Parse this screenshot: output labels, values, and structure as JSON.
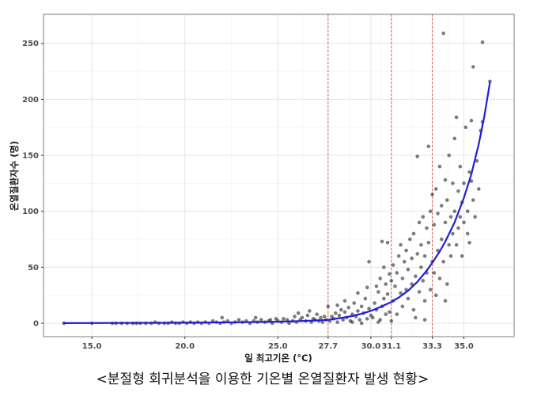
{
  "chart_data": {
    "type": "scatter",
    "xlabel": "일 최고기온 (°C)",
    "ylabel": "온열질환자수 (명)",
    "xlim": [
      12.4,
      37.7
    ],
    "ylim": [
      -12,
      276
    ],
    "x_ticks": [
      15.0,
      20.0,
      25.0,
      27.7,
      30.0,
      31.1,
      33.3,
      35.0
    ],
    "x_tick_labels": [
      "15.0",
      "20.0",
      "25.0",
      "27.7",
      "30.0",
      "31.1",
      "33.3",
      "35.0"
    ],
    "y_ticks": [
      0,
      50,
      100,
      150,
      200,
      250
    ],
    "y_tick_labels": [
      "0",
      "50",
      "100",
      "150",
      "200",
      "250"
    ],
    "grid": true,
    "breakpoints": [
      27.7,
      31.1,
      33.3
    ],
    "colors": {
      "point": "#111111",
      "fit": "#1f1fd8",
      "breakpoint": "#e05a5a",
      "grid_major": "#e4e4e4",
      "grid_minor": "#f1f1f1",
      "panel_border": "#7f7f7f"
    },
    "series": [
      {
        "type": "scatter",
        "points": [
          [
            13.5,
            0
          ],
          [
            15.0,
            0
          ],
          [
            16.1,
            0
          ],
          [
            16.3,
            0
          ],
          [
            16.6,
            0
          ],
          [
            16.9,
            0
          ],
          [
            17.2,
            0
          ],
          [
            17.4,
            0
          ],
          [
            17.6,
            0
          ],
          [
            17.9,
            0
          ],
          [
            18.2,
            0
          ],
          [
            18.4,
            1
          ],
          [
            18.6,
            0
          ],
          [
            18.9,
            0
          ],
          [
            19.1,
            0
          ],
          [
            19.3,
            1
          ],
          [
            19.5,
            0
          ],
          [
            19.7,
            0
          ],
          [
            19.9,
            1
          ],
          [
            20.1,
            0
          ],
          [
            20.3,
            1
          ],
          [
            20.5,
            0
          ],
          [
            20.7,
            1
          ],
          [
            20.9,
            0
          ],
          [
            21.1,
            1
          ],
          [
            21.3,
            0
          ],
          [
            21.5,
            2
          ],
          [
            21.7,
            1
          ],
          [
            21.9,
            0
          ],
          [
            22.1,
            1
          ],
          [
            22.3,
            2
          ],
          [
            22.5,
            0
          ],
          [
            22.7,
            1
          ],
          [
            22.9,
            3
          ],
          [
            23.1,
            1
          ],
          [
            23.3,
            2
          ],
          [
            23.5,
            0
          ],
          [
            23.7,
            2
          ],
          [
            23.9,
            1
          ],
          [
            24.1,
            3
          ],
          [
            24.3,
            1
          ],
          [
            24.5,
            2
          ],
          [
            24.7,
            0
          ],
          [
            24.9,
            4
          ],
          [
            22.0,
            5
          ],
          [
            23.8,
            5
          ],
          [
            24.6,
            3
          ],
          [
            25.0,
            2
          ],
          [
            25.2,
            1
          ],
          [
            25.3,
            4
          ],
          [
            25.5,
            3
          ],
          [
            25.6,
            0
          ],
          [
            25.8,
            2
          ],
          [
            25.9,
            6
          ],
          [
            26.0,
            1
          ],
          [
            26.2,
            3
          ],
          [
            26.3,
            5
          ],
          [
            26.5,
            2
          ],
          [
            26.6,
            7
          ],
          [
            26.8,
            1
          ],
          [
            26.9,
            4
          ],
          [
            27.0,
            3
          ],
          [
            27.1,
            8
          ],
          [
            27.2,
            2
          ],
          [
            27.3,
            5
          ],
          [
            27.4,
            1
          ],
          [
            27.5,
            6
          ],
          [
            27.6,
            3
          ],
          [
            26.1,
            9
          ],
          [
            27.7,
            15
          ],
          [
            26.7,
            11
          ],
          [
            27.8,
            2
          ],
          [
            27.9,
            6
          ],
          [
            28.0,
            4
          ],
          [
            28.1,
            9
          ],
          [
            28.2,
            1
          ],
          [
            28.3,
            7
          ],
          [
            28.4,
            12
          ],
          [
            28.5,
            3
          ],
          [
            28.6,
            10
          ],
          [
            28.7,
            5
          ],
          [
            28.8,
            14
          ],
          [
            28.9,
            2
          ],
          [
            29.0,
            8
          ],
          [
            29.1,
            18
          ],
          [
            29.2,
            6
          ],
          [
            29.3,
            11
          ],
          [
            29.4,
            3
          ],
          [
            29.5,
            15
          ],
          [
            29.6,
            9
          ],
          [
            29.7,
            22
          ],
          [
            29.8,
            4
          ],
          [
            29.9,
            13
          ],
          [
            30.0,
            7
          ],
          [
            29.3,
            27
          ],
          [
            29.8,
            32
          ],
          [
            28.6,
            20
          ],
          [
            29.0,
            1
          ],
          [
            29.5,
            0
          ],
          [
            28.2,
            16
          ],
          [
            29.9,
            55
          ],
          [
            30.1,
            5
          ],
          [
            30.2,
            18
          ],
          [
            30.3,
            12
          ],
          [
            30.4,
            28
          ],
          [
            30.5,
            3
          ],
          [
            30.5,
            40
          ],
          [
            30.6,
            73
          ],
          [
            30.6,
            15
          ],
          [
            30.7,
            22
          ],
          [
            30.8,
            35
          ],
          [
            30.8,
            8
          ],
          [
            30.9,
            72
          ],
          [
            30.9,
            26
          ],
          [
            31.0,
            44
          ],
          [
            31.0,
            10
          ],
          [
            30.3,
            33
          ],
          [
            30.7,
            50
          ],
          [
            31.1,
            38
          ],
          [
            31.1,
            2
          ],
          [
            30.4,
            1
          ],
          [
            31.2,
            20
          ],
          [
            31.2,
            52
          ],
          [
            31.3,
            33
          ],
          [
            31.4,
            8
          ],
          [
            31.4,
            45
          ],
          [
            31.5,
            60
          ],
          [
            31.6,
            27
          ],
          [
            31.6,
            70
          ],
          [
            31.7,
            15
          ],
          [
            31.7,
            40
          ],
          [
            31.8,
            55
          ],
          [
            31.9,
            30
          ],
          [
            31.9,
            65
          ],
          [
            32.0,
            22
          ],
          [
            32.0,
            48
          ],
          [
            32.1,
            75
          ],
          [
            32.2,
            35
          ],
          [
            32.2,
            58
          ],
          [
            32.3,
            12
          ],
          [
            32.3,
            80
          ],
          [
            32.4,
            42
          ],
          [
            32.5,
            149
          ],
          [
            32.5,
            62
          ],
          [
            32.6,
            28
          ],
          [
            32.6,
            90
          ],
          [
            32.7,
            50
          ],
          [
            32.7,
            70
          ],
          [
            32.8,
            38
          ],
          [
            32.8,
            95
          ],
          [
            32.9,
            60
          ],
          [
            32.9,
            20
          ],
          [
            33.0,
            85
          ],
          [
            33.0,
            45
          ],
          [
            33.1,
            158
          ],
          [
            33.1,
            72
          ],
          [
            33.2,
            30
          ],
          [
            33.2,
            100
          ],
          [
            33.3,
            55
          ],
          [
            33.3,
            115
          ],
          [
            32.4,
            5
          ],
          [
            32.9,
            3
          ],
          [
            33.4,
            45
          ],
          [
            33.4,
            88
          ],
          [
            33.5,
            25
          ],
          [
            33.5,
            120
          ],
          [
            33.6,
            65
          ],
          [
            33.6,
            98
          ],
          [
            33.7,
            40
          ],
          [
            33.7,
            140
          ],
          [
            33.8,
            75
          ],
          [
            33.8,
            105
          ],
          [
            33.9,
            259
          ],
          [
            33.9,
            55
          ],
          [
            34.0,
            90
          ],
          [
            34.0,
            128
          ],
          [
            34.1,
            35
          ],
          [
            34.1,
            110
          ],
          [
            34.2,
            70
          ],
          [
            34.2,
            150
          ],
          [
            34.3,
            95
          ],
          [
            34.3,
            60
          ],
          [
            34.4,
            125
          ],
          [
            34.4,
            80
          ],
          [
            34.5,
            100
          ],
          [
            34.5,
            165
          ],
          [
            34.6,
            184
          ],
          [
            34.6,
            70
          ],
          [
            34.7,
            118
          ],
          [
            34.7,
            85
          ],
          [
            34.8,
            140
          ],
          [
            34.8,
            95
          ],
          [
            34.9,
            108
          ],
          [
            34.9,
            60
          ],
          [
            35.0,
            125
          ],
          [
            35.0,
            90
          ],
          [
            35.1,
            175
          ],
          [
            35.2,
            100
          ],
          [
            35.2,
            80
          ],
          [
            35.3,
            135
          ],
          [
            35.4,
            181
          ],
          [
            35.4,
            127
          ],
          [
            35.5,
            229
          ],
          [
            35.5,
            110
          ],
          [
            35.6,
            95
          ],
          [
            35.7,
            145
          ],
          [
            35.8,
            120
          ],
          [
            35.9,
            172
          ],
          [
            36.0,
            251
          ],
          [
            36.0,
            180
          ],
          [
            36.4,
            216
          ],
          [
            35.3,
            72
          ],
          [
            34.0,
            20
          ]
        ]
      },
      {
        "type": "line",
        "points": [
          [
            13.5,
            0.1
          ],
          [
            15.0,
            0.15
          ],
          [
            17.0,
            0.25
          ],
          [
            19.0,
            0.4
          ],
          [
            21.0,
            0.6
          ],
          [
            23.0,
            0.9
          ],
          [
            25.0,
            1.4
          ],
          [
            26.0,
            1.8
          ],
          [
            27.0,
            2.4
          ],
          [
            27.7,
            3
          ],
          [
            28.5,
            5
          ],
          [
            29.0,
            6.5
          ],
          [
            29.5,
            8.5
          ],
          [
            30.0,
            11
          ],
          [
            30.5,
            14.5
          ],
          [
            31.1,
            19
          ],
          [
            31.5,
            23
          ],
          [
            32.0,
            29
          ],
          [
            32.5,
            37
          ],
          [
            33.0,
            47
          ],
          [
            33.3,
            54
          ],
          [
            33.7,
            64
          ],
          [
            34.0,
            73
          ],
          [
            34.5,
            90
          ],
          [
            35.0,
            112
          ],
          [
            35.4,
            133
          ],
          [
            35.8,
            160
          ],
          [
            36.1,
            185
          ],
          [
            36.4,
            215
          ]
        ]
      }
    ]
  },
  "caption": "<분절형 회귀분석을 이용한 기온별 온열질환자 발생 현황>"
}
